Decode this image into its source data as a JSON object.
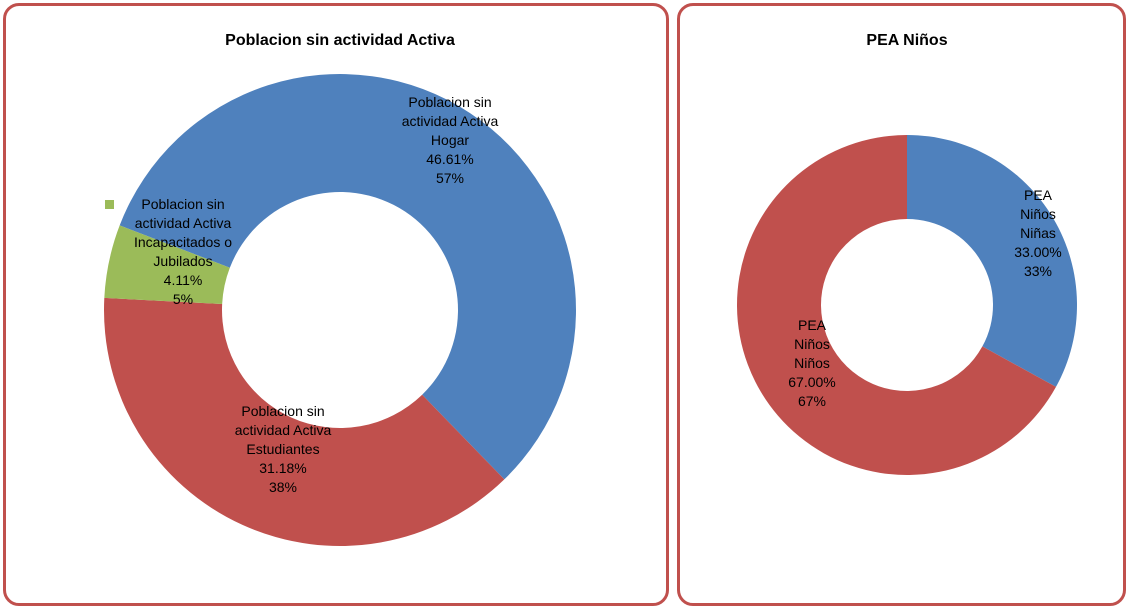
{
  "chart_data": [
    {
      "type": "donut",
      "title": "Poblacion sin actividad  Activa",
      "categories": [
        "Poblacion sin actividad Activa Hogar",
        "Poblacion sin actividad Activa Estudiantes",
        "Poblacion sin actividad Activa Incapacitados o Jubilados"
      ],
      "values": [
        46.61,
        31.18,
        4.11
      ],
      "value_labels": [
        "46.61%",
        "31.18%",
        "4.11%"
      ],
      "shares": [
        57,
        38,
        5
      ],
      "share_labels": [
        "57%",
        "38%",
        "5%"
      ],
      "colors": [
        "#4f81bd",
        "#c0504d",
        "#9bbb59"
      ]
    },
    {
      "type": "donut",
      "title": "PEA Niños",
      "categories": [
        "PEA Niños Niñas",
        "PEA Niños Niños"
      ],
      "values": [
        33.0,
        67.0
      ],
      "value_labels": [
        "33.00%",
        "67.00%"
      ],
      "shares": [
        33,
        67
      ],
      "share_labels": [
        "33%",
        "67%"
      ],
      "colors": [
        "#4f81bd",
        "#c0504d"
      ]
    }
  ]
}
